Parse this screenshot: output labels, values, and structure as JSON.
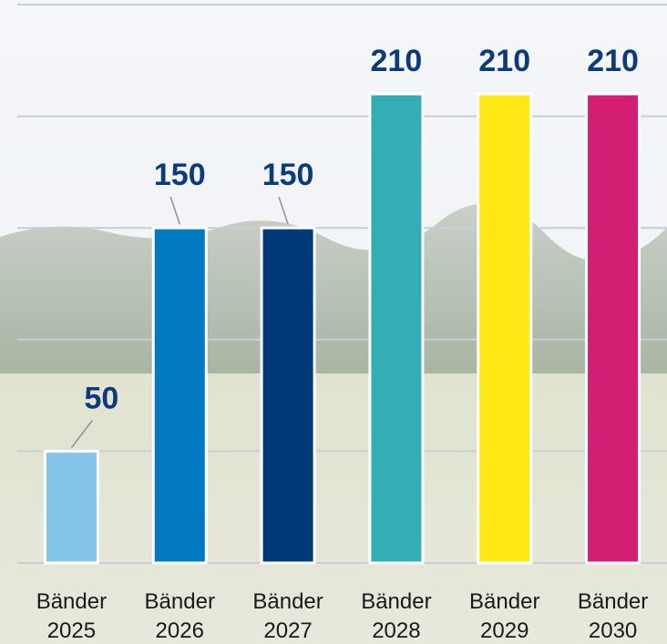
{
  "chart_data": {
    "type": "bar",
    "categories": [
      "Bänder 2025",
      "Bänder 2026",
      "Bänder 2027",
      "Bänder 2028",
      "Bänder 2029",
      "Bänder 2030"
    ],
    "values": [
      50,
      150,
      150,
      210,
      210,
      210
    ],
    "colors": [
      "#85c5ea",
      "#0079c1",
      "#003a78",
      "#35adb5",
      "#ffe815",
      "#d31e74"
    ],
    "ylim": [
      0,
      250
    ],
    "yticks": [
      0,
      50,
      100,
      150,
      200,
      250
    ],
    "grid": true
  }
}
